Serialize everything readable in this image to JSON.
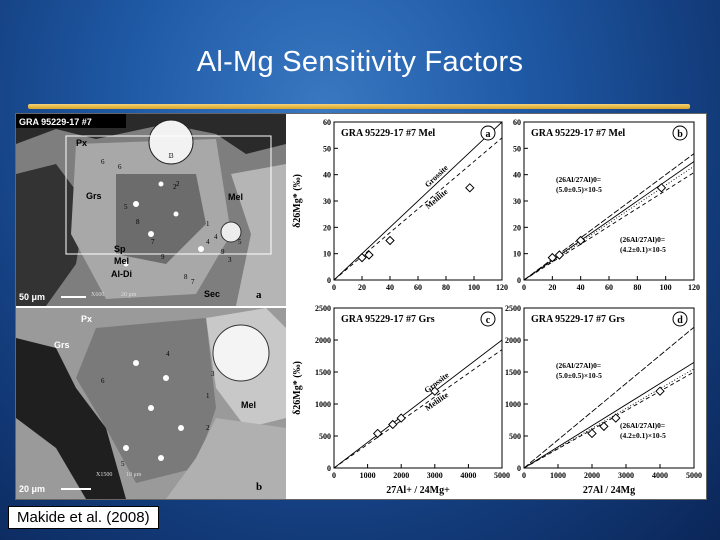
{
  "slide": {
    "title": "Al-Mg Sensitivity Factors",
    "citation": "Makide et al. (2008)"
  },
  "micrographs": {
    "top": {
      "sample": "GRA 95229-17 #7",
      "labels": [
        "Px",
        "Grs",
        "Mel",
        "Sp",
        "Mel",
        "Al-Di",
        "Sec"
      ],
      "spots": [
        "1",
        "2",
        "3",
        "4",
        "5",
        "6",
        "7",
        "8",
        "9",
        "1",
        "2",
        "3",
        "4",
        "5",
        "6",
        "7",
        "8",
        "9"
      ],
      "scale": "50 μm",
      "extra": [
        "X600",
        "20 μm"
      ],
      "panel": "a"
    },
    "bottom": {
      "labels": [
        "Px",
        "Grs",
        "Mel"
      ],
      "spots": [
        "1",
        "2",
        "3",
        "4",
        "5",
        "6"
      ],
      "scale": "20 μm",
      "extra": [
        "X1500",
        "10 μm"
      ],
      "panel": "b"
    }
  },
  "chart_data": [
    {
      "type": "scatter",
      "panel": "a",
      "title": "GRA 95229-17 #7 Mel",
      "ylabel": "δ26Mg* (‰)",
      "xlim": [
        0,
        120
      ],
      "ylim": [
        0,
        60
      ],
      "xticks": [
        0,
        20,
        40,
        60,
        80,
        100,
        120
      ],
      "yticks": [
        0,
        10,
        20,
        30,
        40,
        50,
        60
      ],
      "series": [
        {
          "values": [
            [
              20,
              8.5
            ],
            [
              25,
              9.5
            ],
            [
              40,
              15
            ],
            [
              97,
              35
            ]
          ]
        }
      ],
      "lines": [
        {
          "name": "Grossite",
          "slope": 0.5
        },
        {
          "name": "Melilite",
          "slope": 0.45
        }
      ]
    },
    {
      "type": "scatter",
      "panel": "b",
      "title": "GRA 95229-17 #7 Mel",
      "xlim": [
        0,
        120
      ],
      "ylim": [
        0,
        60
      ],
      "xticks": [
        0,
        20,
        40,
        60,
        80,
        100,
        120
      ],
      "yticks": [
        0,
        10,
        20,
        30,
        40,
        50,
        60
      ],
      "series": [
        {
          "values": [
            [
              20,
              8.5
            ],
            [
              25,
              9.5
            ],
            [
              40,
              15
            ],
            [
              97,
              35
            ]
          ]
        }
      ],
      "lines": [
        {
          "slope": 0.375
        },
        {
          "slope": 0.34
        },
        {
          "slope": 0.36
        },
        {
          "slope": 0.4
        }
      ],
      "annotations": [
        {
          "line1": "(26Al/27Al)0=",
          "line2": "(5.0±0.5)×10-5"
        },
        {
          "line1": "(26Al/27Al)0=",
          "line2": "(4.2±0.1)×10-5"
        }
      ]
    },
    {
      "type": "scatter",
      "panel": "c",
      "title": "GRA 95229-17 #7 Grs",
      "ylabel": "δ26Mg* (‰)",
      "xlabel": "27Al+ / 24Mg+",
      "xlim": [
        0,
        5000
      ],
      "ylim": [
        0,
        2500
      ],
      "xticks": [
        0,
        1000,
        2000,
        3000,
        4000,
        5000
      ],
      "yticks": [
        0,
        500,
        1000,
        1500,
        2000,
        2500
      ],
      "series": [
        {
          "values": [
            [
              1300,
              540
            ],
            [
              1750,
              680
            ],
            [
              2000,
              780
            ],
            [
              3000,
              1200
            ]
          ]
        }
      ],
      "lines": [
        {
          "name": "Grossite",
          "slope": 0.4
        },
        {
          "name": "Melilite",
          "slope": 0.37
        }
      ]
    },
    {
      "type": "scatter",
      "panel": "d",
      "title": "GRA 95229-17 #7 Grs",
      "xlabel": "27Al / 24Mg",
      "xlim": [
        0,
        5000
      ],
      "ylim": [
        0,
        2500
      ],
      "xticks": [
        0,
        1000,
        2000,
        3000,
        4000,
        5000
      ],
      "yticks": [
        0,
        500,
        1000,
        1500,
        2000,
        2500
      ],
      "series": [
        {
          "values": [
            [
              2000,
              540
            ],
            [
              2350,
              650
            ],
            [
              2700,
              780
            ],
            [
              4000,
              1200
            ]
          ]
        }
      ],
      "lines": [
        {
          "slope": 0.33
        },
        {
          "slope": 0.3
        },
        {
          "slope": 0.31
        },
        {
          "slope": 0.44
        }
      ],
      "annotations": [
        {
          "line1": "(26Al/27Al)0=",
          "line2": "(5.0±0.5)×10-5"
        },
        {
          "line1": "(26Al/27Al)0=",
          "line2": "(4.2±0.1)×10-5"
        }
      ]
    }
  ]
}
